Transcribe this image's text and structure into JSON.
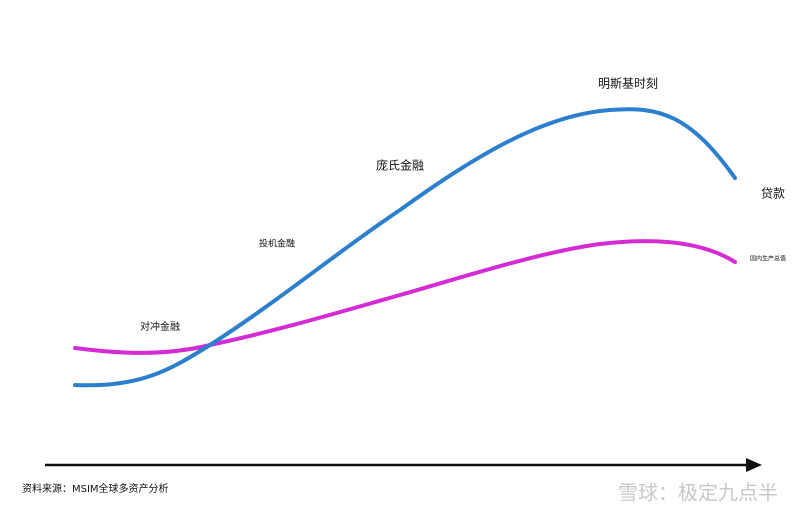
{
  "labels": {
    "minsky": "明斯基时刻",
    "ponzi": "庞氏金融",
    "speculative": "投机金融",
    "hedge": "对冲金融",
    "loans": "贷款",
    "gdp": "国内生产总值"
  },
  "source": "资料来源：MSIM全球多资产分析",
  "watermark": "雪球：极定九点半"
}
